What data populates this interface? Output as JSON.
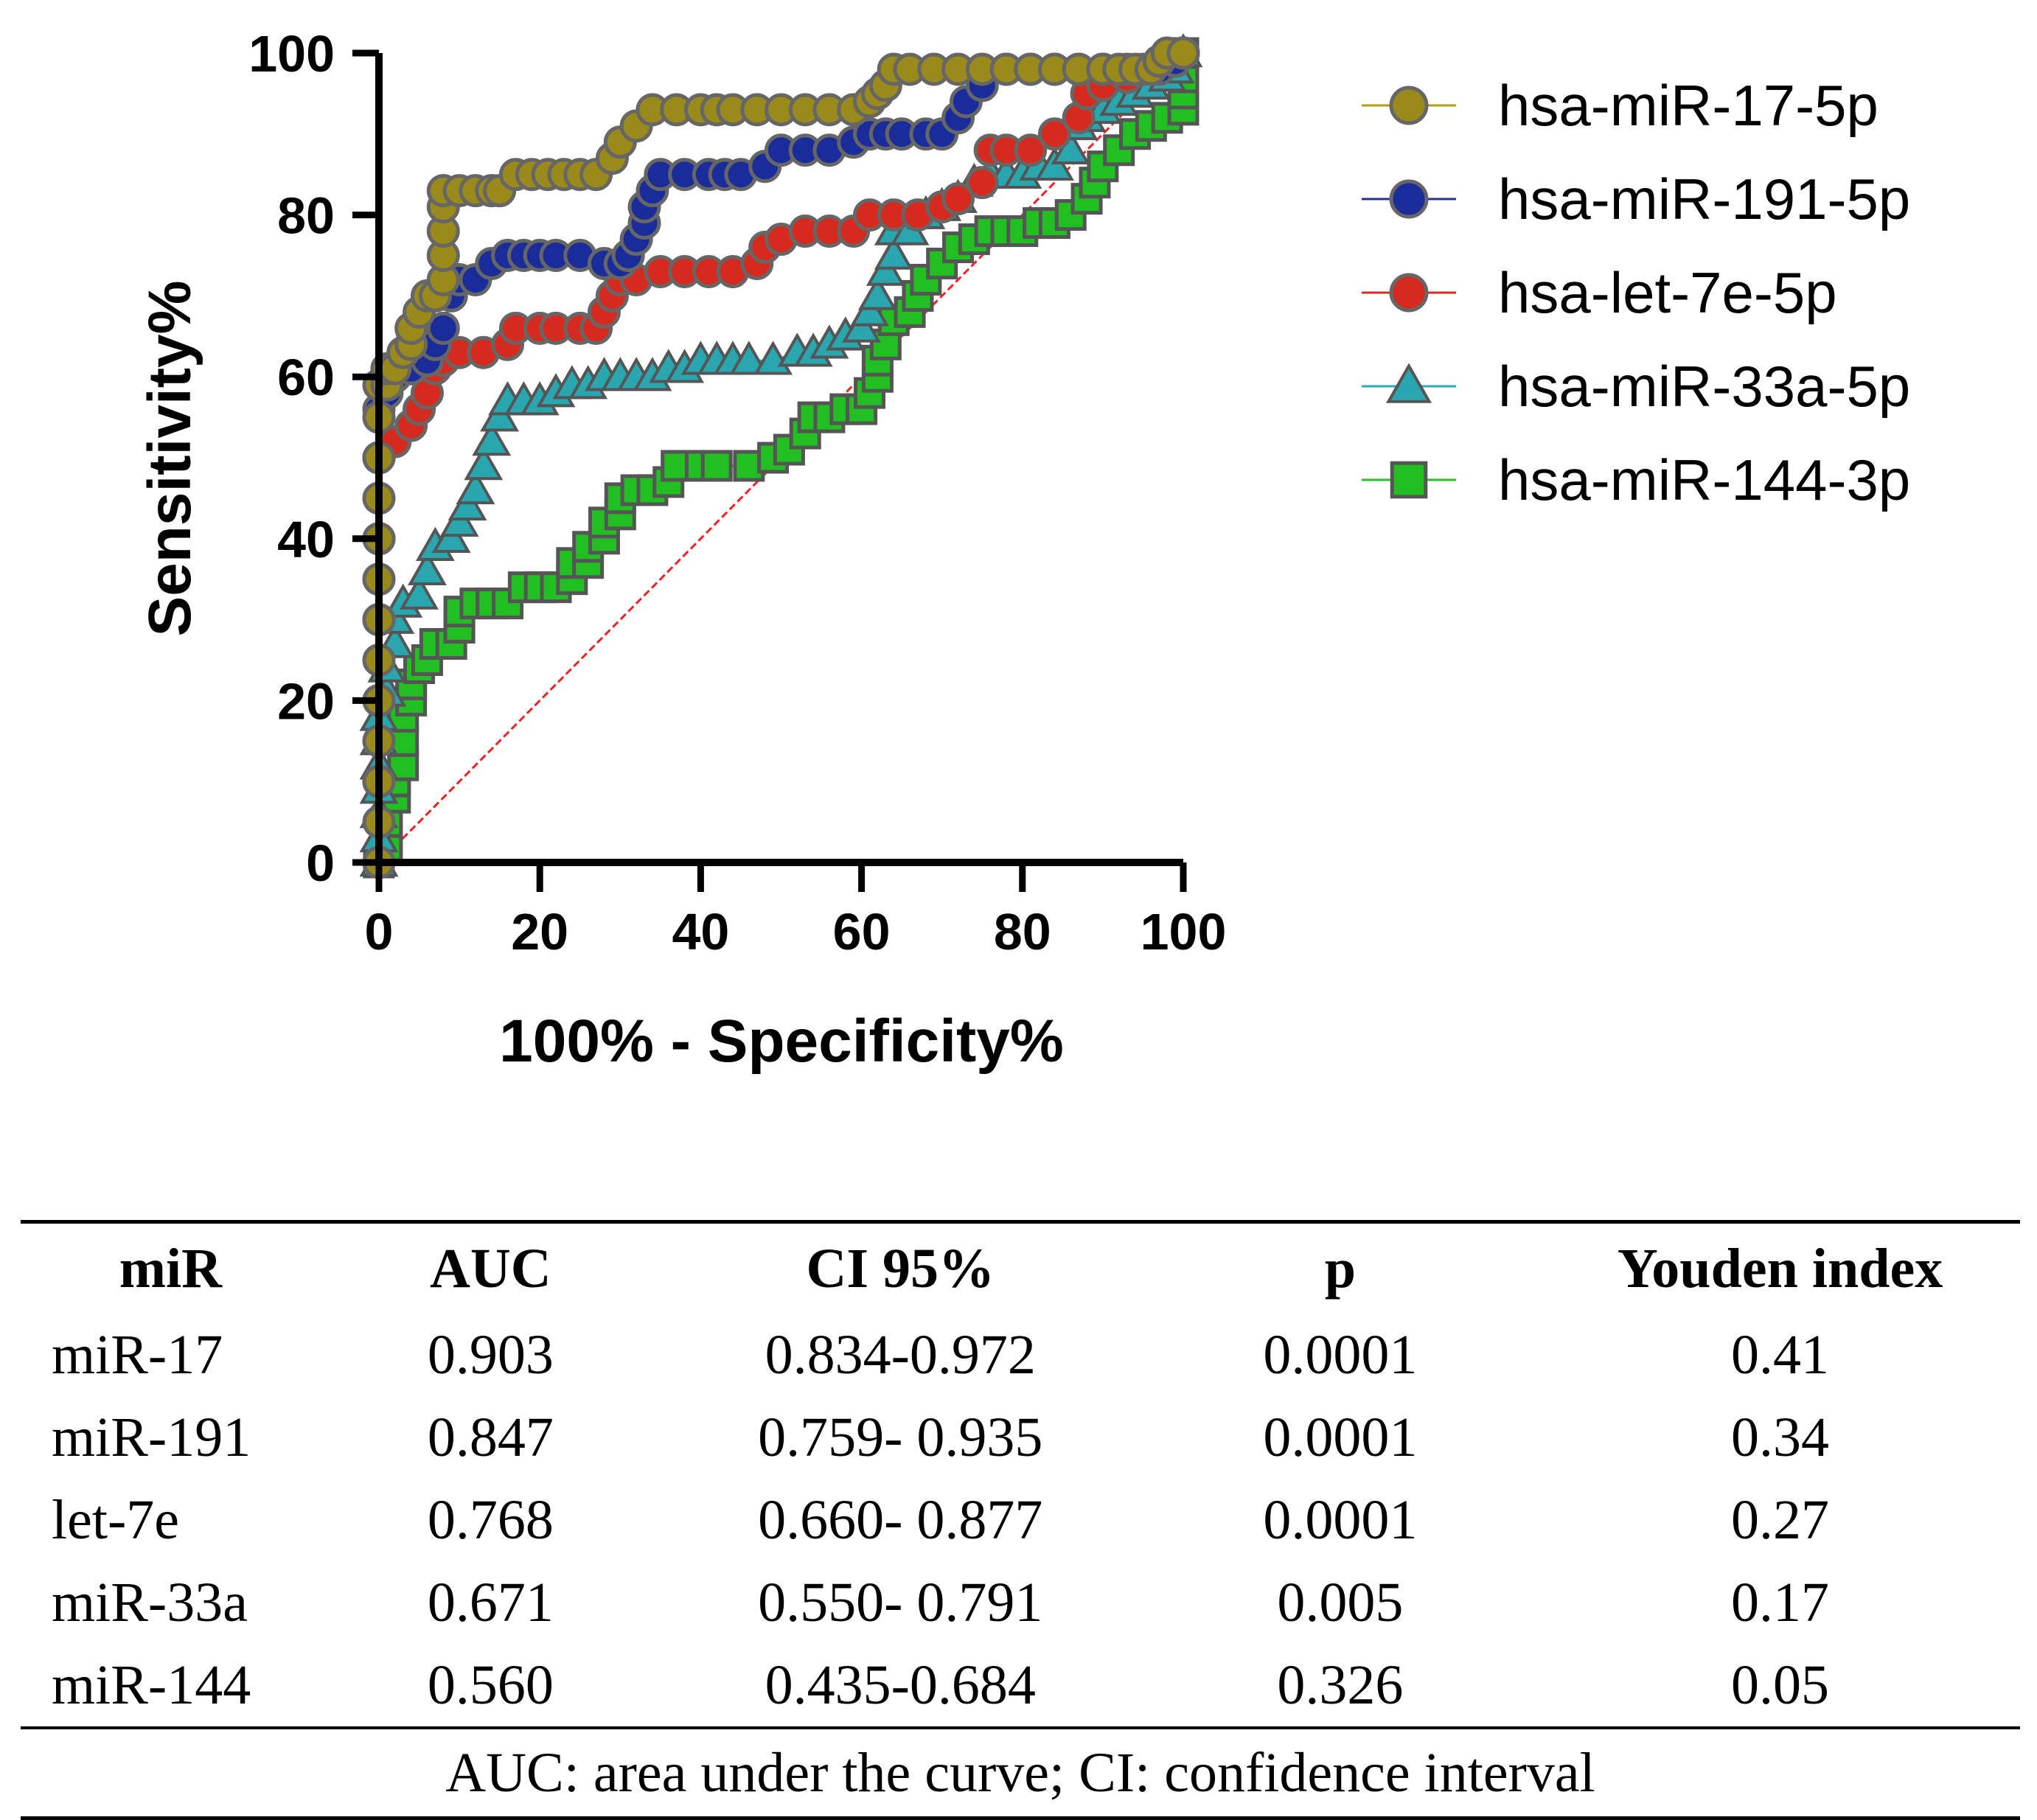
{
  "chart_data": {
    "type": "line",
    "xlabel": "100% - Specificity%",
    "ylabel": "Sensitivity%",
    "xlim": [
      0,
      100
    ],
    "ylim": [
      0,
      100
    ],
    "x_ticks": [
      "0",
      "20",
      "40",
      "60",
      "80",
      "100"
    ],
    "y_ticks": [
      "0",
      "20",
      "40",
      "60",
      "80",
      "100"
    ],
    "legend_position": "top-right",
    "reference_line": {
      "x": [
        0,
        100
      ],
      "y": [
        0,
        100
      ],
      "color": "#ee2222",
      "style": "dashed"
    },
    "series": [
      {
        "name": "hsa-miR-17-5p",
        "marker": "circle",
        "color": "#9a8a1c",
        "line_color": "#b29e1a",
        "points": [
          [
            0,
            0
          ],
          [
            0,
            5
          ],
          [
            0,
            10
          ],
          [
            0,
            15
          ],
          [
            0,
            20
          ],
          [
            0,
            25
          ],
          [
            0,
            30
          ],
          [
            0,
            35
          ],
          [
            0,
            40
          ],
          [
            0,
            45
          ],
          [
            0,
            50
          ],
          [
            0,
            55
          ],
          [
            0,
            59
          ],
          [
            1,
            59
          ],
          [
            1,
            61
          ],
          [
            2,
            61
          ],
          [
            3,
            63
          ],
          [
            4,
            64
          ],
          [
            4,
            66
          ],
          [
            5,
            68
          ],
          [
            6,
            70
          ],
          [
            7,
            70
          ],
          [
            8,
            72
          ],
          [
            8,
            75
          ],
          [
            8,
            78
          ],
          [
            8,
            81
          ],
          [
            8,
            83
          ],
          [
            10,
            83
          ],
          [
            12,
            83
          ],
          [
            14,
            83
          ],
          [
            15,
            83
          ],
          [
            17,
            85
          ],
          [
            19,
            85
          ],
          [
            21,
            85
          ],
          [
            23,
            85
          ],
          [
            25,
            85
          ],
          [
            27,
            85
          ],
          [
            29,
            87
          ],
          [
            30,
            89
          ],
          [
            32,
            91
          ],
          [
            34,
            93
          ],
          [
            37,
            93
          ],
          [
            40,
            93
          ],
          [
            42,
            93
          ],
          [
            44,
            93
          ],
          [
            47,
            93
          ],
          [
            50,
            93
          ],
          [
            53,
            93
          ],
          [
            56,
            93
          ],
          [
            59,
            93
          ],
          [
            61,
            94
          ],
          [
            62,
            95
          ],
          [
            63,
            96
          ],
          [
            64,
            98
          ],
          [
            66,
            98
          ],
          [
            69,
            98
          ],
          [
            72,
            98
          ],
          [
            75,
            98
          ],
          [
            78,
            98
          ],
          [
            81,
            98
          ],
          [
            84,
            98
          ],
          [
            87,
            98
          ],
          [
            90,
            98
          ],
          [
            92,
            98
          ],
          [
            94,
            98
          ],
          [
            96,
            98
          ],
          [
            97,
            99
          ],
          [
            98,
            100
          ],
          [
            100,
            100
          ]
        ]
      },
      {
        "name": "hsa-miR-191-5p",
        "marker": "circle",
        "color": "#1a2c9a",
        "line_color": "#22319c",
        "points": [
          [
            0,
            0
          ],
          [
            0,
            10
          ],
          [
            0,
            20
          ],
          [
            0,
            30
          ],
          [
            0,
            40
          ],
          [
            0,
            50
          ],
          [
            0,
            56
          ],
          [
            1,
            58
          ],
          [
            2,
            60
          ],
          [
            4,
            61
          ],
          [
            6,
            62
          ],
          [
            7,
            64
          ],
          [
            8,
            66
          ],
          [
            9,
            70
          ],
          [
            10,
            72
          ],
          [
            12,
            72
          ],
          [
            14,
            74
          ],
          [
            16,
            75
          ],
          [
            18,
            75
          ],
          [
            20,
            75
          ],
          [
            22,
            75
          ],
          [
            25,
            75
          ],
          [
            28,
            74
          ],
          [
            30,
            74
          ],
          [
            31,
            75
          ],
          [
            32,
            77
          ],
          [
            33,
            79
          ],
          [
            33,
            81
          ],
          [
            34,
            83
          ],
          [
            35,
            85
          ],
          [
            38,
            85
          ],
          [
            41,
            85
          ],
          [
            43,
            85
          ],
          [
            45,
            85
          ],
          [
            48,
            86
          ],
          [
            50,
            88
          ],
          [
            53,
            88
          ],
          [
            56,
            88
          ],
          [
            59,
            89
          ],
          [
            61,
            90
          ],
          [
            63,
            90
          ],
          [
            65,
            90
          ],
          [
            68,
            90
          ],
          [
            70,
            90
          ],
          [
            72,
            92
          ],
          [
            73,
            94
          ],
          [
            75,
            96
          ],
          [
            78,
            98
          ],
          [
            81,
            98
          ],
          [
            84,
            98
          ],
          [
            87,
            98
          ],
          [
            90,
            98
          ],
          [
            93,
            98
          ],
          [
            95,
            98
          ],
          [
            97,
            98
          ],
          [
            99,
            99
          ],
          [
            100,
            100
          ]
        ]
      },
      {
        "name": "hsa-let-7e-5p",
        "marker": "circle",
        "color": "#d62a1e",
        "line_color": "#dd2a1e",
        "points": [
          [
            0,
            0
          ],
          [
            0,
            10
          ],
          [
            0,
            20
          ],
          [
            0,
            30
          ],
          [
            0,
            40
          ],
          [
            0,
            50
          ],
          [
            2,
            52
          ],
          [
            4,
            54
          ],
          [
            5,
            56
          ],
          [
            6,
            58
          ],
          [
            7,
            61
          ],
          [
            8,
            62
          ],
          [
            10,
            63
          ],
          [
            13,
            63
          ],
          [
            16,
            64
          ],
          [
            17,
            66
          ],
          [
            20,
            66
          ],
          [
            22,
            66
          ],
          [
            25,
            66
          ],
          [
            27,
            66
          ],
          [
            28,
            68
          ],
          [
            29,
            70
          ],
          [
            30,
            72
          ],
          [
            32,
            72
          ],
          [
            35,
            73
          ],
          [
            38,
            73
          ],
          [
            41,
            73
          ],
          [
            44,
            73
          ],
          [
            47,
            74
          ],
          [
            48,
            76
          ],
          [
            50,
            77
          ],
          [
            53,
            78
          ],
          [
            56,
            78
          ],
          [
            59,
            78
          ],
          [
            61,
            80
          ],
          [
            64,
            80
          ],
          [
            67,
            80
          ],
          [
            70,
            81
          ],
          [
            72,
            82
          ],
          [
            75,
            84
          ],
          [
            76,
            88
          ],
          [
            78,
            88
          ],
          [
            81,
            88
          ],
          [
            84,
            90
          ],
          [
            87,
            92
          ],
          [
            88,
            95
          ],
          [
            90,
            96
          ],
          [
            93,
            97
          ],
          [
            96,
            98
          ],
          [
            99,
            99
          ],
          [
            100,
            100
          ]
        ]
      },
      {
        "name": "hsa-miR-33a-5p",
        "marker": "triangle",
        "color": "#2aa6ae",
        "line_color": "#24aebc",
        "points": [
          [
            0,
            0
          ],
          [
            0,
            3
          ],
          [
            0,
            6
          ],
          [
            0,
            9
          ],
          [
            0,
            12
          ],
          [
            0,
            15
          ],
          [
            0,
            18
          ],
          [
            1,
            21
          ],
          [
            1,
            24
          ],
          [
            2,
            27
          ],
          [
            2,
            30
          ],
          [
            3,
            32
          ],
          [
            5,
            33
          ],
          [
            6,
            36
          ],
          [
            7,
            39
          ],
          [
            9,
            40
          ],
          [
            10,
            42
          ],
          [
            11,
            44
          ],
          [
            12,
            46
          ],
          [
            13,
            49
          ],
          [
            14,
            52
          ],
          [
            15,
            55
          ],
          [
            16,
            57
          ],
          [
            18,
            57
          ],
          [
            20,
            57
          ],
          [
            22,
            58
          ],
          [
            24,
            59
          ],
          [
            26,
            59
          ],
          [
            28,
            60
          ],
          [
            30,
            60
          ],
          [
            32,
            60
          ],
          [
            34,
            60
          ],
          [
            36,
            61
          ],
          [
            38,
            61
          ],
          [
            40,
            62
          ],
          [
            42,
            62
          ],
          [
            44,
            62
          ],
          [
            46,
            62
          ],
          [
            49,
            62
          ],
          [
            52,
            63
          ],
          [
            54,
            63
          ],
          [
            56,
            64
          ],
          [
            58,
            65
          ],
          [
            60,
            66
          ],
          [
            61,
            68
          ],
          [
            62,
            70
          ],
          [
            63,
            73
          ],
          [
            64,
            75
          ],
          [
            64,
            78
          ],
          [
            66,
            78
          ],
          [
            68,
            80
          ],
          [
            70,
            81
          ],
          [
            72,
            82
          ],
          [
            74,
            84
          ],
          [
            76,
            85
          ],
          [
            78,
            85
          ],
          [
            80,
            85
          ],
          [
            82,
            86
          ],
          [
            84,
            86
          ],
          [
            86,
            88
          ],
          [
            87,
            91
          ],
          [
            88,
            92
          ],
          [
            90,
            93
          ],
          [
            92,
            94
          ],
          [
            94,
            95
          ],
          [
            96,
            96
          ],
          [
            98,
            97
          ],
          [
            99,
            98
          ],
          [
            100,
            100
          ]
        ]
      },
      {
        "name": "hsa-miR-144-3p",
        "marker": "square",
        "color": "#22bf22",
        "line_color": "#1ec81e",
        "points": [
          [
            0,
            0
          ],
          [
            1,
            2
          ],
          [
            1,
            5
          ],
          [
            2,
            8
          ],
          [
            2,
            10
          ],
          [
            3,
            12
          ],
          [
            3,
            15
          ],
          [
            3,
            18
          ],
          [
            4,
            20
          ],
          [
            4,
            22
          ],
          [
            5,
            24
          ],
          [
            6,
            25
          ],
          [
            7,
            27
          ],
          [
            9,
            27
          ],
          [
            10,
            29
          ],
          [
            10,
            31
          ],
          [
            12,
            32
          ],
          [
            14,
            32
          ],
          [
            16,
            32
          ],
          [
            18,
            34
          ],
          [
            20,
            34
          ],
          [
            22,
            34
          ],
          [
            24,
            35
          ],
          [
            24,
            37
          ],
          [
            26,
            37
          ],
          [
            26,
            39
          ],
          [
            28,
            40
          ],
          [
            28,
            42
          ],
          [
            30,
            43
          ],
          [
            30,
            45
          ],
          [
            32,
            46
          ],
          [
            34,
            46
          ],
          [
            36,
            47
          ],
          [
            37,
            49
          ],
          [
            40,
            49
          ],
          [
            42,
            49
          ],
          [
            46,
            49
          ],
          [
            49,
            50
          ],
          [
            51,
            51
          ],
          [
            53,
            53
          ],
          [
            54,
            55
          ],
          [
            56,
            55
          ],
          [
            58,
            56
          ],
          [
            60,
            56
          ],
          [
            61,
            58
          ],
          [
            62,
            60
          ],
          [
            62,
            62
          ],
          [
            63,
            64
          ],
          [
            64,
            67
          ],
          [
            66,
            68
          ],
          [
            67,
            70
          ],
          [
            68,
            72
          ],
          [
            70,
            74
          ],
          [
            72,
            76
          ],
          [
            74,
            77
          ],
          [
            76,
            78
          ],
          [
            78,
            78
          ],
          [
            80,
            78
          ],
          [
            82,
            79
          ],
          [
            84,
            79
          ],
          [
            86,
            80
          ],
          [
            88,
            82
          ],
          [
            89,
            84
          ],
          [
            90,
            86
          ],
          [
            92,
            88
          ],
          [
            94,
            90
          ],
          [
            96,
            91
          ],
          [
            98,
            92
          ],
          [
            100,
            93
          ],
          [
            100,
            95
          ],
          [
            100,
            97
          ],
          [
            100,
            100
          ]
        ]
      }
    ]
  },
  "table": {
    "headers": [
      "miR",
      "AUC",
      "CI 95%",
      "p",
      "Youden index"
    ],
    "rows": [
      [
        "miR-17",
        "0.903",
        "0.834-0.972",
        "0.0001",
        "0.41"
      ],
      [
        "miR-191",
        "0.847",
        "0.759- 0.935",
        "0.0001",
        "0.34"
      ],
      [
        "let-7e",
        "0.768",
        "0.660- 0.877",
        "0.0001",
        "0.27"
      ],
      [
        "miR-33a",
        "0.671",
        "0.550- 0.791",
        "0.005",
        "0.17"
      ],
      [
        "miR-144",
        "0.560",
        "0.435-0.684",
        "0.326",
        "0.05"
      ]
    ],
    "footnote": "AUC: area under the curve; CI: confidence interval"
  }
}
